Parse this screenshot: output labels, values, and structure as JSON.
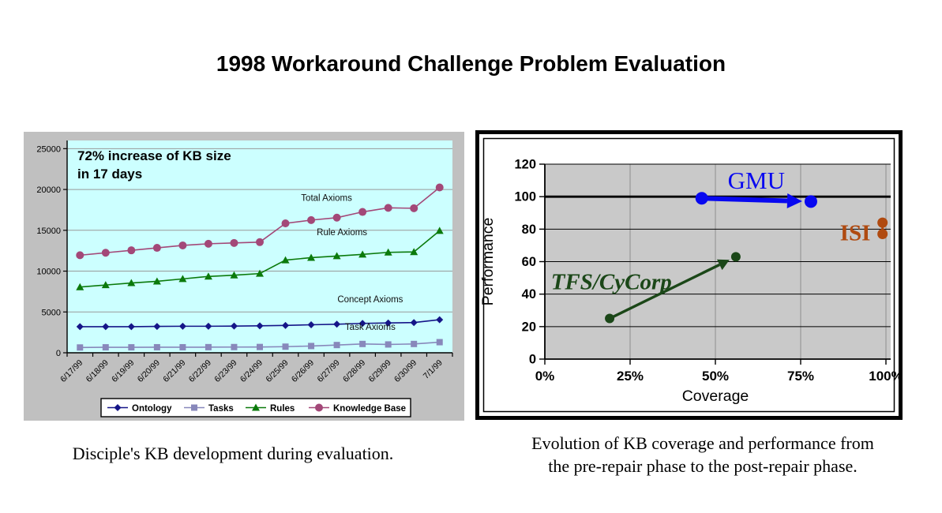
{
  "page": {
    "title": "1998 Workaround Challenge Problem Evaluation",
    "left_caption": "Disciple's KB development during evaluation.",
    "right_caption": [
      "Evolution of KB coverage and performance from",
      "the pre-repair phase to the post-repair phase."
    ]
  },
  "chart_data": [
    {
      "type": "line",
      "name": "kb-development",
      "annotation": [
        "72% increase of KB size",
        "in 17 days"
      ],
      "categories": [
        "6/17/99",
        "6/18/99",
        "6/19/99",
        "6/20/99",
        "6/21/99",
        "6/22/99",
        "6/23/99",
        "6/24/99",
        "6/25/99",
        "6/26/99",
        "6/27/99",
        "6/28/99",
        "6/29/99",
        "6/30/99",
        "7/1/99"
      ],
      "ylim": [
        0,
        26000
      ],
      "yticks": [
        0,
        5000,
        10000,
        15000,
        20000,
        25000
      ],
      "chart_bg": "#C0C0C0",
      "plot_bg": "#CCFFFF",
      "grid_color": "#999999",
      "series": [
        {
          "name": "Ontology",
          "marker": "diamond",
          "color": "#151588",
          "values": [
            3200,
            3200,
            3200,
            3230,
            3250,
            3250,
            3270,
            3300,
            3350,
            3430,
            3500,
            3600,
            3650,
            3700,
            4050
          ]
        },
        {
          "name": "Tasks",
          "marker": "square",
          "color": "#8888BB",
          "values": [
            650,
            670,
            670,
            680,
            680,
            690,
            700,
            710,
            750,
            830,
            950,
            1080,
            1020,
            1080,
            1300
          ]
        },
        {
          "name": "Rules",
          "marker": "triangle",
          "color": "#0B7A0B",
          "values": [
            8050,
            8300,
            8550,
            8750,
            9050,
            9350,
            9500,
            9700,
            11350,
            11650,
            11850,
            12050,
            12300,
            12350,
            14950
          ]
        },
        {
          "name": "Knowledge Base",
          "marker": "circle",
          "color": "#A34878",
          "values": [
            11950,
            12250,
            12550,
            12850,
            13150,
            13350,
            13450,
            13550,
            15850,
            16250,
            16550,
            17250,
            17750,
            17700,
            20250
          ]
        }
      ],
      "point_labels": [
        {
          "text": "Total Axioms",
          "xi": 9.6,
          "v": 18600
        },
        {
          "text": "Rule Axioms",
          "xi": 10.2,
          "v": 14400
        },
        {
          "text": "Concept Axioms",
          "xi": 11.3,
          "v": 6200
        },
        {
          "text": "Task Axioms",
          "xi": 11.3,
          "v": 2800
        }
      ],
      "legend": [
        "Ontology",
        "Tasks",
        "Rules",
        "Knowledge Base"
      ]
    },
    {
      "type": "scatter",
      "name": "coverage-performance",
      "xlabel": "Coverage",
      "ylabel": "Performance",
      "xlim": [
        0,
        100
      ],
      "ylim": [
        0,
        120
      ],
      "xticks": [
        {
          "value": 0,
          "label": "0%"
        },
        {
          "value": 25,
          "label": "25%"
        },
        {
          "value": 50,
          "label": "50%"
        },
        {
          "value": 75,
          "label": "75%"
        },
        {
          "value": 100,
          "label": "100%"
        }
      ],
      "yticks": [
        0,
        20,
        40,
        60,
        80,
        100,
        120
      ],
      "plot_bg": "#C9C9C9",
      "vgrid_color": "#989898",
      "hgrid_color": "#000000",
      "emphasis_line": 100,
      "series": [
        {
          "name": "GMU",
          "color": "#0808F0",
          "from": {
            "x": 46,
            "y": 99
          },
          "to": {
            "x": 78,
            "y": 97
          },
          "arrow": true,
          "line_width": 6,
          "dot_radius": 8,
          "head": {
            "len": 19,
            "width": 9.5
          },
          "label": {
            "text": "GMU",
            "x": 62,
            "y": 105,
            "size": 31,
            "bold": false,
            "italic": false
          }
        },
        {
          "name": "TFS/CyCorp",
          "color": "#1B4718",
          "from": {
            "x": 19,
            "y": 25
          },
          "to": {
            "x": 56,
            "y": 63
          },
          "arrow": true,
          "line_width": 3.4,
          "dot_radius": 6,
          "head": {
            "len": 14,
            "width": 7.5
          },
          "label": {
            "text": "TFS/CyCorp",
            "x": 19.5,
            "y": 43,
            "size": 29,
            "bold": true,
            "italic": true
          }
        },
        {
          "name": "ISI",
          "color": "#B04A10",
          "from": {
            "x": 99,
            "y": 84
          },
          "to": {
            "x": 99,
            "y": 77
          },
          "arrow": false,
          "line_width": 3,
          "dot_radius": 6.5,
          "head": null,
          "label": {
            "text": "ISI",
            "x": 91,
            "y": 73,
            "size": 29,
            "bold": true,
            "italic": false
          }
        }
      ]
    }
  ]
}
